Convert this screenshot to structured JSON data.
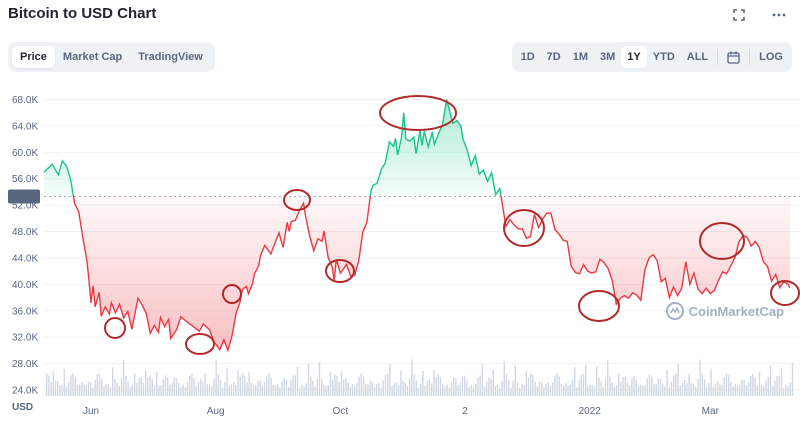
{
  "title": "Bitcoin to USD Chart",
  "icons": {
    "expand": "fullscreen-icon",
    "more": "more-horizontal-icon",
    "calendar": "calendar-icon"
  },
  "left_tabs": [
    {
      "label": "Price",
      "active": true
    },
    {
      "label": "Market Cap",
      "active": false
    },
    {
      "label": "TradingView",
      "active": false
    }
  ],
  "range_tabs": [
    {
      "label": "1D",
      "active": false
    },
    {
      "label": "7D",
      "active": false
    },
    {
      "label": "1M",
      "active": false
    },
    {
      "label": "3M",
      "active": false
    },
    {
      "label": "1Y",
      "active": true
    },
    {
      "label": "YTD",
      "active": false
    },
    {
      "label": "ALL",
      "active": false
    }
  ],
  "log_label": "LOG",
  "axis": {
    "currency_label": "USD",
    "current_price_label": "53.3K"
  },
  "watermark": "CoinMarketCap",
  "colors": {
    "up": "#16c784",
    "down": "#ea3943",
    "annotation": "#b02a2a",
    "grid": "#eff2f5"
  },
  "chart_data": {
    "type": "area",
    "title": "",
    "baseline": 53.3,
    "ylim": [
      22,
      70
    ],
    "ytick_values": [
      24,
      28,
      32,
      36,
      40,
      44,
      48,
      52,
      56,
      60,
      64,
      68
    ],
    "ytick_labels": [
      "24.0K",
      "28.0K",
      "32.0K",
      "36.0K",
      "40.0K",
      "44.0K",
      "48.0K",
      "52.0K",
      "56.0K",
      "60.0K",
      "64.0K",
      "68.0K"
    ],
    "xtick_labels": [
      "Jun",
      "Aug",
      "Oct",
      "2",
      "2022",
      "Mar"
    ],
    "xtick_days": [
      63,
      124,
      185,
      246,
      307,
      366
    ],
    "xlim": [
      40,
      405
    ],
    "x_axis_start": "2021-04-10",
    "series": [
      {
        "price_points": [
          [
            40,
            57.0
          ],
          [
            44,
            58.2
          ],
          [
            47,
            56.6
          ],
          [
            49,
            58.7
          ],
          [
            51,
            57.9
          ],
          [
            53,
            55.9
          ],
          [
            55,
            52.2
          ],
          [
            57,
            51.0
          ],
          [
            59,
            47.1
          ],
          [
            61,
            43.6
          ],
          [
            62,
            40.5
          ],
          [
            63,
            37.2
          ],
          [
            64,
            39.8
          ],
          [
            65,
            36.6
          ],
          [
            67,
            38.8
          ],
          [
            68,
            35.2
          ],
          [
            70,
            36.6
          ],
          [
            72,
            35.5
          ],
          [
            73,
            37.2
          ],
          [
            75,
            35.7
          ],
          [
            77,
            37.0
          ],
          [
            79,
            34.9
          ],
          [
            81,
            35.9
          ],
          [
            83,
            33.2
          ],
          [
            84,
            34.8
          ],
          [
            86,
            37.9
          ],
          [
            88,
            36.9
          ],
          [
            90,
            35.6
          ],
          [
            92,
            32.6
          ],
          [
            94,
            33.8
          ],
          [
            96,
            32.7
          ],
          [
            97,
            35.0
          ],
          [
            99,
            33.6
          ],
          [
            101,
            34.7
          ],
          [
            102,
            31.8
          ],
          [
            105,
            33.2
          ],
          [
            107,
            35.1
          ],
          [
            110,
            34.3
          ],
          [
            113,
            33.6
          ],
          [
            116,
            32.9
          ],
          [
            118,
            34.0
          ],
          [
            121,
            33.1
          ],
          [
            123,
            31.4
          ],
          [
            126,
            30.1
          ],
          [
            128,
            31.6
          ],
          [
            130,
            30.0
          ],
          [
            132,
            32.2
          ],
          [
            134,
            35.6
          ],
          [
            136,
            37.4
          ],
          [
            137,
            39.2
          ],
          [
            139,
            39.7
          ],
          [
            140,
            38.6
          ],
          [
            142,
            40.1
          ],
          [
            143,
            41.6
          ],
          [
            145,
            42.8
          ],
          [
            146,
            44.4
          ],
          [
            148,
            45.9
          ],
          [
            151,
            44.6
          ],
          [
            153,
            46.3
          ],
          [
            155,
            47.8
          ],
          [
            157,
            45.6
          ],
          [
            159,
            49.4
          ],
          [
            160,
            48.0
          ],
          [
            161,
            49.5
          ],
          [
            163,
            49.7
          ],
          [
            165,
            51.2
          ],
          [
            167,
            52.3
          ],
          [
            168,
            50.3
          ],
          [
            170,
            47.3
          ],
          [
            172,
            45.1
          ],
          [
            174,
            46.9
          ],
          [
            176,
            46.5
          ],
          [
            177,
            48.1
          ],
          [
            179,
            44.1
          ],
          [
            181,
            42.6
          ],
          [
            182,
            40.6
          ],
          [
            183,
            43.8
          ],
          [
            185,
            41.7
          ],
          [
            188,
            43.0
          ],
          [
            190,
            41.3
          ],
          [
            192,
            41.4
          ],
          [
            194,
            43.6
          ],
          [
            196,
            47.9
          ],
          [
            198,
            49.4
          ],
          [
            200,
            54.2
          ],
          [
            201,
            55.0
          ],
          [
            203,
            55.3
          ],
          [
            205,
            57.4
          ],
          [
            207,
            58.4
          ],
          [
            209,
            61.6
          ],
          [
            211,
            60.9
          ],
          [
            212,
            62.1
          ],
          [
            213,
            59.6
          ],
          [
            215,
            62.4
          ],
          [
            216,
            66.0
          ],
          [
            217,
            62.0
          ],
          [
            219,
            61.7
          ],
          [
            221,
            62.3
          ],
          [
            222,
            59.8
          ],
          [
            224,
            63.3
          ],
          [
            225,
            61.0
          ],
          [
            226,
            63.2
          ],
          [
            228,
            60.8
          ],
          [
            230,
            63.1
          ],
          [
            231,
            61.2
          ],
          [
            233,
            62.8
          ],
          [
            235,
            64.2
          ],
          [
            237,
            68.0
          ],
          [
            238,
            66.8
          ],
          [
            240,
            64.4
          ],
          [
            242,
            64.8
          ],
          [
            244,
            64.0
          ],
          [
            245,
            62.0
          ],
          [
            247,
            60.4
          ],
          [
            249,
            58.0
          ],
          [
            251,
            59.5
          ],
          [
            253,
            56.7
          ],
          [
            255,
            57.3
          ],
          [
            257,
            55.6
          ],
          [
            259,
            56.9
          ],
          [
            261,
            53.6
          ],
          [
            263,
            54.5
          ],
          [
            266,
            48.8
          ],
          [
            268,
            49.8
          ],
          [
            270,
            49.0
          ],
          [
            272,
            48.4
          ],
          [
            274,
            48.4
          ],
          [
            276,
            47.0
          ],
          [
            278,
            47.2
          ],
          [
            280,
            50.6
          ],
          [
            282,
            48.6
          ],
          [
            284,
            49.9
          ],
          [
            286,
            50.8
          ],
          [
            288,
            50.8
          ],
          [
            290,
            48.3
          ],
          [
            292,
            47.6
          ],
          [
            294,
            46.7
          ],
          [
            296,
            46.5
          ],
          [
            298,
            42.7
          ],
          [
            300,
            41.8
          ],
          [
            302,
            41.6
          ],
          [
            304,
            43.0
          ],
          [
            306,
            42.0
          ],
          [
            308,
            41.7
          ],
          [
            310,
            41.9
          ],
          [
            312,
            43.8
          ],
          [
            314,
            43.3
          ],
          [
            316,
            42.4
          ],
          [
            318,
            40.6
          ],
          [
            320,
            37.0
          ],
          [
            322,
            37.9
          ],
          [
            324,
            38.3
          ],
          [
            326,
            37.9
          ],
          [
            328,
            38.7
          ],
          [
            330,
            38.4
          ],
          [
            332,
            37.6
          ],
          [
            334,
            42.2
          ],
          [
            336,
            44.0
          ],
          [
            338,
            44.5
          ],
          [
            340,
            43.6
          ],
          [
            342,
            40.4
          ],
          [
            344,
            40.9
          ],
          [
            346,
            38.0
          ],
          [
            348,
            39.6
          ],
          [
            350,
            38.3
          ],
          [
            352,
            39.4
          ],
          [
            354,
            43.4
          ],
          [
            356,
            40.0
          ],
          [
            358,
            41.7
          ],
          [
            360,
            39.3
          ],
          [
            362,
            38.6
          ],
          [
            364,
            39.4
          ],
          [
            366,
            38.6
          ],
          [
            368,
            39.1
          ],
          [
            370,
            40.6
          ],
          [
            372,
            41.9
          ],
          [
            374,
            41.6
          ],
          [
            376,
            42.8
          ],
          [
            378,
            44.0
          ],
          [
            380,
            46.4
          ],
          [
            382,
            47.4
          ],
          [
            384,
            47.1
          ],
          [
            386,
            45.8
          ],
          [
            388,
            46.5
          ],
          [
            390,
            45.6
          ],
          [
            392,
            43.4
          ],
          [
            394,
            42.7
          ],
          [
            396,
            40.5
          ],
          [
            398,
            41.5
          ],
          [
            400,
            39.5
          ],
          [
            402,
            40.4
          ],
          [
            404,
            40.0
          ],
          [
            405,
            39.5
          ]
        ]
      }
    ],
    "annotations": [
      "circle",
      "circle",
      "circle",
      "circle",
      "circle",
      "circle",
      "circle",
      "circle",
      "circle",
      "circle"
    ]
  }
}
